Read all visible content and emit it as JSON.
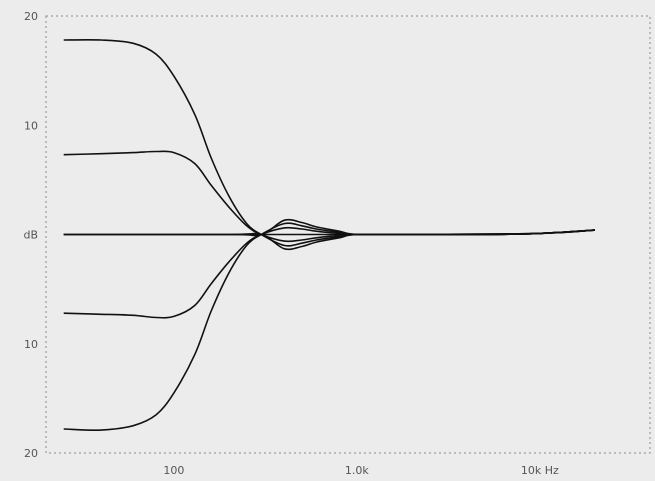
{
  "chart_data": {
    "type": "line",
    "title": "",
    "xlabel": "",
    "ylabel": "",
    "x_scale": "log",
    "xlim": [
      20,
      40000
    ],
    "ylim": [
      -20,
      20
    ],
    "x_ticks": [
      {
        "value": 100,
        "label": "100"
      },
      {
        "value": 1000,
        "label": "1.0k"
      },
      {
        "value": 10000,
        "label": "10k Hz"
      }
    ],
    "y_ticks": [
      {
        "value": 20,
        "label": "20"
      },
      {
        "value": 10,
        "label": "10"
      },
      {
        "value": 0,
        "label": "dB"
      },
      {
        "value": -10,
        "label": "10"
      },
      {
        "value": -20,
        "label": "20"
      }
    ],
    "grid": false,
    "line_color": "#111111",
    "frame_color": "#8a8a8a",
    "background": "#ececec",
    "series": [
      {
        "x": [
          25,
          40,
          60,
          80,
          100,
          130,
          160,
          200,
          250,
          300,
          400,
          500,
          600,
          800,
          1000,
          2000,
          5000,
          10000,
          20000
        ],
        "values": [
          17.8,
          17.8,
          17.5,
          16.5,
          14.5,
          11,
          7,
          3.5,
          1,
          0,
          -1,
          -0.8,
          -0.5,
          -0.2,
          0,
          0,
          0,
          0.1,
          0.4
        ]
      },
      {
        "x": [
          25,
          40,
          60,
          80,
          100,
          130,
          160,
          200,
          250,
          300,
          400,
          500,
          600,
          800,
          1000,
          2000,
          5000,
          10000,
          20000
        ],
        "values": [
          7.3,
          7.4,
          7.5,
          7.6,
          7.5,
          6.5,
          4.5,
          2.5,
          0.8,
          0,
          -0.6,
          -0.5,
          -0.3,
          -0.1,
          0,
          0,
          0,
          0.1,
          0.4
        ]
      },
      {
        "x": [
          25,
          100,
          250,
          300,
          400,
          500,
          600,
          800,
          1000,
          2000,
          5000,
          10000,
          20000
        ],
        "values": [
          0,
          0,
          0,
          0,
          0,
          0,
          0,
          0,
          0,
          0,
          0,
          0.1,
          0.4
        ]
      },
      {
        "x": [
          25,
          40,
          60,
          80,
          100,
          130,
          160,
          200,
          250,
          300,
          400,
          500,
          600,
          800,
          1000,
          2000,
          5000,
          10000,
          20000
        ],
        "values": [
          -7.2,
          -7.3,
          -7.4,
          -7.6,
          -7.5,
          -6.5,
          -4.5,
          -2.5,
          -0.8,
          0,
          0.6,
          0.5,
          0.3,
          0.1,
          0,
          0,
          0,
          0.1,
          0.4
        ]
      },
      {
        "x": [
          25,
          40,
          60,
          80,
          100,
          130,
          160,
          200,
          250,
          300,
          400,
          500,
          600,
          800,
          1000,
          2000,
          5000,
          10000,
          20000
        ],
        "values": [
          -17.8,
          -17.9,
          -17.5,
          -16.5,
          -14.5,
          -11,
          -7,
          -3.5,
          -1,
          0,
          1,
          0.8,
          0.5,
          0.2,
          0,
          0,
          0,
          0.1,
          0.4
        ]
      },
      {
        "x": [
          25,
          200,
          300,
          400,
          500,
          600,
          800,
          1000,
          2000,
          10000,
          20000
        ],
        "values": [
          0,
          0,
          0,
          1.3,
          1.1,
          0.7,
          0.3,
          0,
          0,
          0.1,
          0.4
        ]
      },
      {
        "x": [
          25,
          200,
          300,
          400,
          500,
          600,
          800,
          1000,
          2000,
          10000,
          20000
        ],
        "values": [
          0,
          0,
          0,
          -1.3,
          -1.1,
          -0.7,
          -0.3,
          0,
          0,
          0.1,
          0.4
        ]
      }
    ]
  }
}
